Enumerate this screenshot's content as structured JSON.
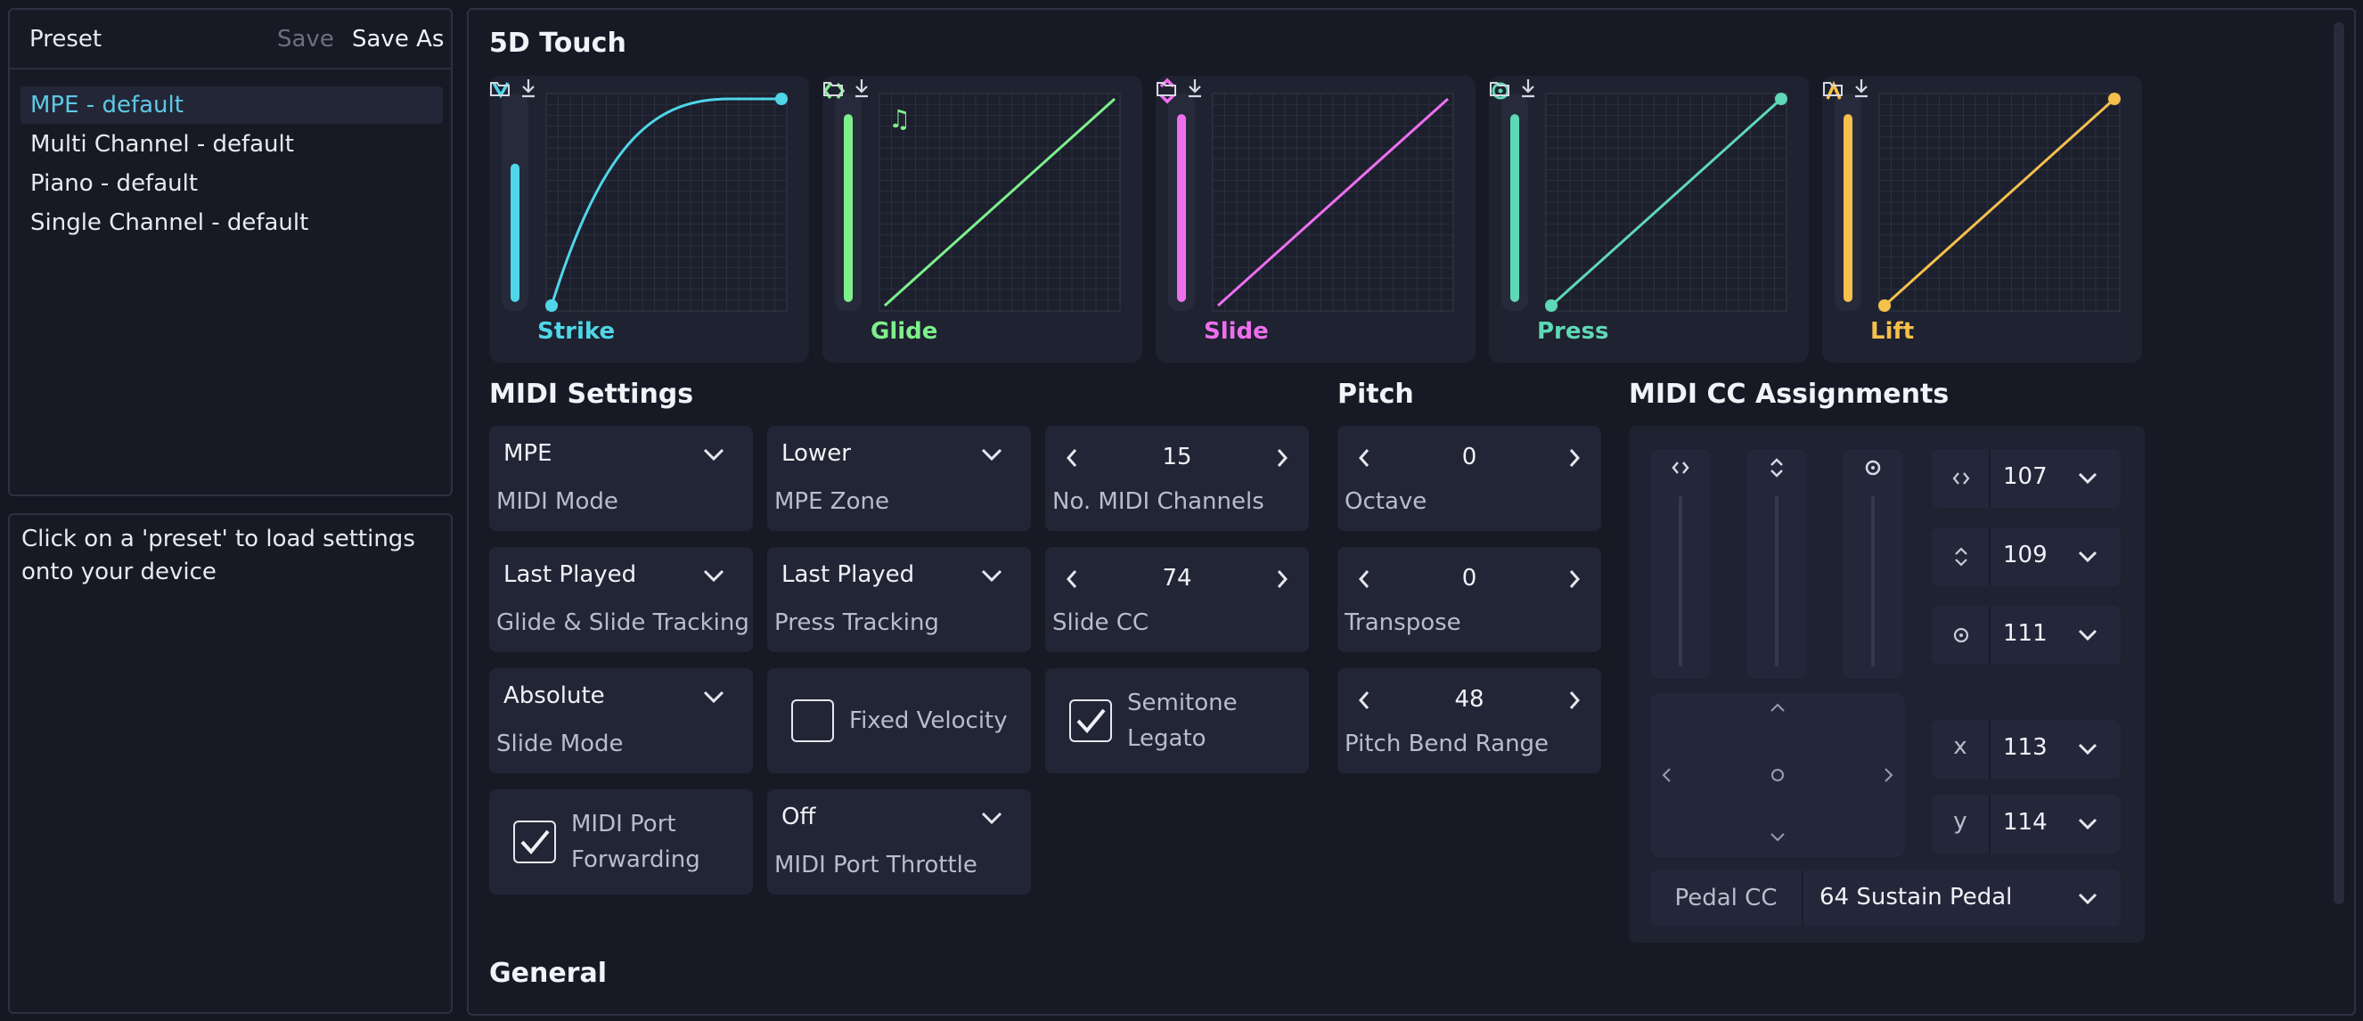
{
  "sidebar": {
    "title": "Preset",
    "save_label": "Save",
    "save_as_label": "Save As",
    "presets": [
      "MPE - default",
      "Multi Channel - default",
      "Piano - default",
      "Single Channel - default"
    ],
    "info_text": "Click on a 'preset' to load settings onto your device"
  },
  "touch": {
    "title": "5D Touch",
    "curves": [
      {
        "label": "Strike",
        "color": "#4fd6e8",
        "icon": "strike-chevron-icon",
        "meter_level": 0.7
      },
      {
        "label": "Glide",
        "color": "#7ef08b",
        "icon": "glide-arrows-icon",
        "meter_level": 0.95
      },
      {
        "label": "Slide",
        "color": "#ee6fee",
        "icon": "slide-arrows-icon",
        "meter_level": 0.95
      },
      {
        "label": "Press",
        "color": "#5fd8b6",
        "icon": "press-circle-icon",
        "meter_level": 0.95
      },
      {
        "label": "Lift",
        "color": "#f5c04c",
        "icon": "lift-caret-icon",
        "meter_level": 0.95
      }
    ],
    "glide_note_icon": "music-notes-icon"
  },
  "midi": {
    "title": "MIDI Settings",
    "midi_mode": {
      "value": "MPE",
      "label": "MIDI Mode"
    },
    "mpe_zone": {
      "value": "Lower",
      "label": "MPE Zone"
    },
    "channels": {
      "value": "15",
      "label": "No. MIDI Channels"
    },
    "glide_tracking": {
      "value": "Last Played",
      "label": "Glide & Slide Tracking"
    },
    "press_tracking": {
      "value": "Last Played",
      "label": "Press Tracking"
    },
    "slide_cc": {
      "value": "74",
      "label": "Slide CC"
    },
    "slide_mode": {
      "value": "Absolute",
      "label": "Slide Mode"
    },
    "fixed_velocity": {
      "label": "Fixed Velocity",
      "checked": false
    },
    "semitone_legato": {
      "label1": "Semitone",
      "label2": "Legato",
      "checked": true
    },
    "port_forwarding": {
      "label1": "MIDI Port",
      "label2": "Forwarding",
      "checked": true
    },
    "port_throttle": {
      "value": "Off",
      "label": "MIDI Port Throttle"
    }
  },
  "pitch": {
    "title": "Pitch",
    "octave": {
      "value": "0",
      "label": "Octave"
    },
    "transpose": {
      "value": "0",
      "label": "Transpose"
    },
    "bend_range": {
      "value": "48",
      "label": "Pitch Bend Range"
    }
  },
  "cc": {
    "title": "MIDI CC Assignments",
    "rows": [
      {
        "icon": "glide-arrows-icon",
        "symbol": "",
        "value": "107"
      },
      {
        "icon": "slide-arrows-icon",
        "symbol": "",
        "value": "109"
      },
      {
        "icon": "press-circle-icon",
        "symbol": "",
        "value": "111"
      },
      {
        "icon": "x-axis-icon",
        "symbol": "x",
        "value": "113"
      },
      {
        "icon": "y-axis-icon",
        "symbol": "y",
        "value": "114"
      }
    ],
    "pedal_label": "Pedal CC",
    "pedal_value": "64 Sustain Pedal"
  },
  "general": {
    "title": "General"
  }
}
